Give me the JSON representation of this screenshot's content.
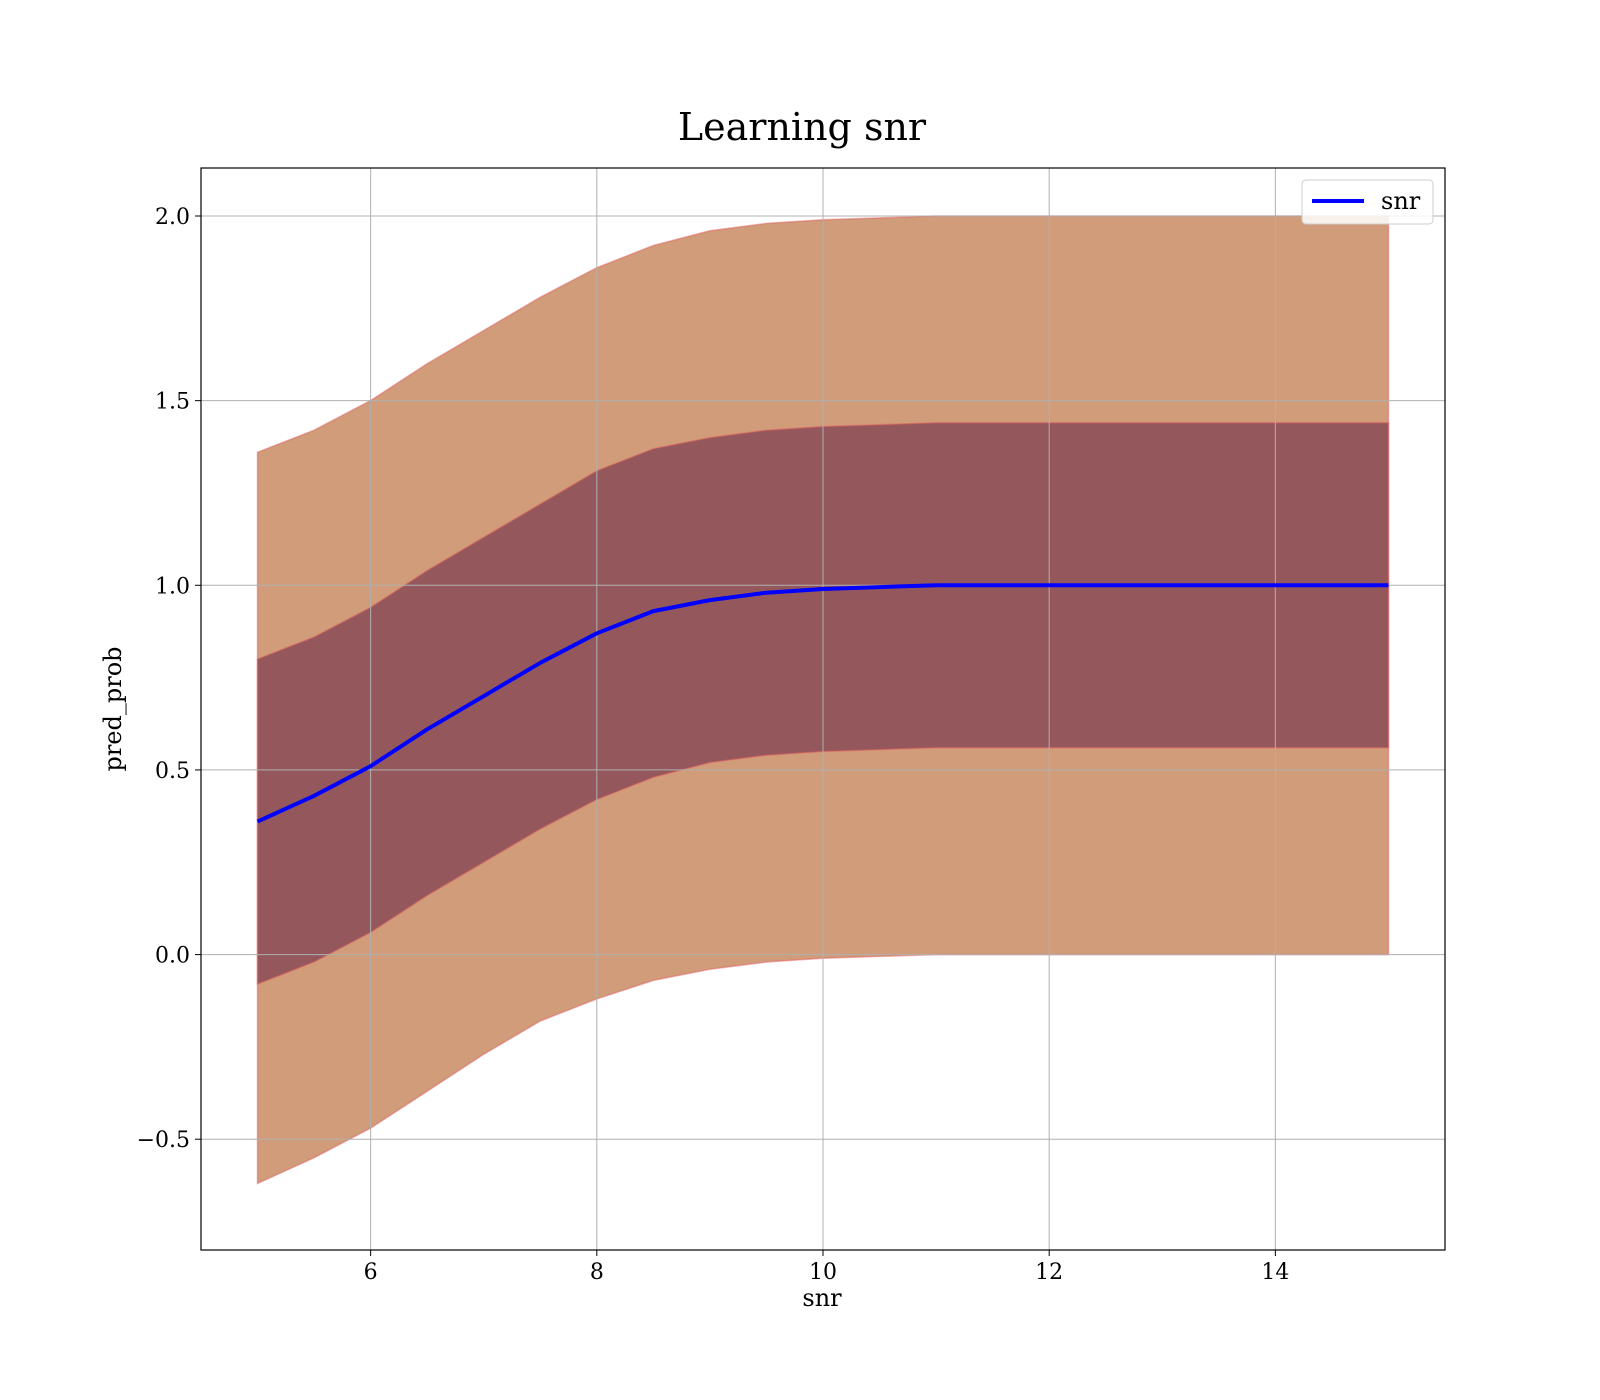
{
  "chart_data": {
    "type": "line",
    "title": "Learning snr",
    "xlabel": "snr",
    "ylabel": "pred_prob",
    "xlim": [
      4.5,
      15.5
    ],
    "ylim": [
      -0.8,
      2.13
    ],
    "xticks": [
      6,
      8,
      10,
      12,
      14
    ],
    "yticks": [
      -0.5,
      0.0,
      0.5,
      1.0,
      1.5,
      2.0
    ],
    "xtick_labels": [
      "6",
      "8",
      "10",
      "12",
      "14"
    ],
    "ytick_labels": [
      "−0.5",
      "0.0",
      "0.5",
      "1.0",
      "1.5",
      "2.0"
    ],
    "grid": true,
    "legend": {
      "placement": "top-right",
      "entries": [
        {
          "label": "snr",
          "color": "#0000ff"
        }
      ]
    },
    "x": [
      5.0,
      5.5,
      6.0,
      6.5,
      7.0,
      7.5,
      8.0,
      8.5,
      9.0,
      9.5,
      10.0,
      10.5,
      11.0,
      12.0,
      13.0,
      14.0,
      15.0
    ],
    "series": [
      {
        "name": "snr",
        "color": "#0000ff",
        "values": [
          0.36,
          0.43,
          0.51,
          0.61,
          0.7,
          0.79,
          0.87,
          0.93,
          0.96,
          0.98,
          0.99,
          0.995,
          1.0,
          1.0,
          1.0,
          1.0,
          1.0
        ]
      }
    ],
    "bands": [
      {
        "color": "#b35a1f",
        "lower": [
          -0.62,
          -0.55,
          -0.47,
          -0.37,
          -0.27,
          -0.18,
          -0.12,
          -0.07,
          -0.04,
          -0.02,
          -0.01,
          -0.005,
          0.0,
          0.0,
          0.0,
          0.0,
          0.0
        ],
        "upper": [
          1.36,
          1.42,
          1.5,
          1.6,
          1.69,
          1.78,
          1.86,
          1.92,
          1.96,
          1.98,
          1.99,
          1.995,
          2.0,
          2.0,
          2.0,
          2.0,
          2.0
        ]
      },
      {
        "color": "#6a2b4a",
        "lower": [
          -0.08,
          -0.02,
          0.06,
          0.16,
          0.25,
          0.34,
          0.42,
          0.48,
          0.52,
          0.54,
          0.55,
          0.555,
          0.56,
          0.56,
          0.56,
          0.56,
          0.56
        ],
        "upper": [
          0.8,
          0.86,
          0.94,
          1.04,
          1.13,
          1.22,
          1.31,
          1.37,
          1.4,
          1.42,
          1.43,
          1.435,
          1.44,
          1.44,
          1.44,
          1.44,
          1.44
        ]
      }
    ]
  }
}
